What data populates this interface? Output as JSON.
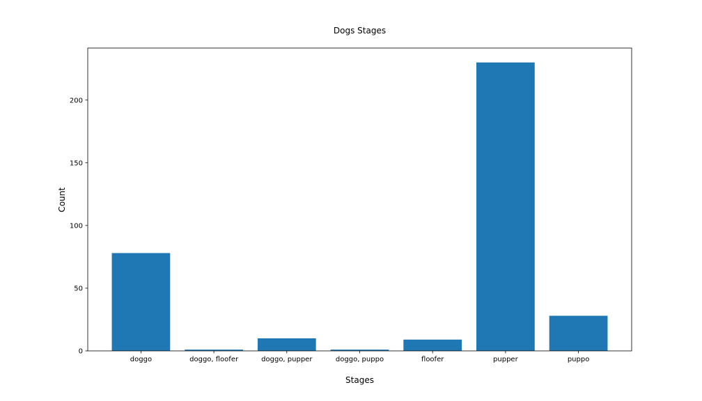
{
  "chart_data": {
    "type": "bar",
    "title": "Dogs Stages",
    "xlabel": "Stages",
    "ylabel": "Count",
    "categories": [
      "doggo",
      "doggo, floofer",
      "doggo, pupper",
      "doggo, puppo",
      "floofer",
      "pupper",
      "puppo"
    ],
    "values": [
      78,
      1,
      10,
      1,
      9,
      230,
      28
    ],
    "ylim": [
      0,
      241.5
    ],
    "yticks": [
      0,
      50,
      100,
      150,
      200
    ],
    "grid": false,
    "legend": "none",
    "bar_color": "#1f77b4"
  }
}
